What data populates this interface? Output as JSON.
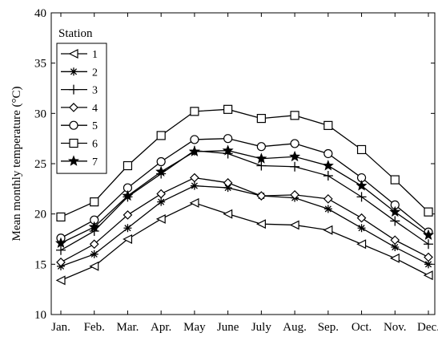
{
  "chart_data": {
    "type": "line",
    "title": "",
    "xlabel": "",
    "ylabel": "Mean monthly temperature (°C)",
    "categories": [
      "Jan.",
      "Feb.",
      "Mar.",
      "Apr.",
      "May",
      "June",
      "July",
      "Aug.",
      "Sep.",
      "Oct.",
      "Nov.",
      "Dec."
    ],
    "ylim": [
      10,
      40
    ],
    "yticks": [
      "10",
      "15",
      "20",
      "25",
      "30",
      "35",
      "40"
    ],
    "grid": false,
    "legend": {
      "title": "Station",
      "placement": "top-left"
    },
    "series": [
      {
        "name": "1",
        "marker": "triangle-left",
        "values": [
          13.4,
          14.8,
          17.5,
          19.5,
          21.1,
          20.0,
          19.0,
          18.9,
          18.4,
          17.0,
          15.6,
          13.9
        ]
      },
      {
        "name": "2",
        "marker": "asterisk",
        "values": [
          14.8,
          16.0,
          18.6,
          21.2,
          22.8,
          22.6,
          21.8,
          21.6,
          20.5,
          18.6,
          16.7,
          15.0
        ]
      },
      {
        "name": "3",
        "marker": "plus",
        "values": [
          16.4,
          18.3,
          21.7,
          24.0,
          26.3,
          26.0,
          24.8,
          24.7,
          23.8,
          21.7,
          19.3,
          17.0
        ]
      },
      {
        "name": "4",
        "marker": "diamond",
        "values": [
          15.2,
          17.0,
          19.9,
          22.0,
          23.6,
          23.1,
          21.8,
          21.9,
          21.5,
          19.6,
          17.4,
          15.7
        ]
      },
      {
        "name": "5",
        "marker": "circle",
        "values": [
          17.6,
          19.4,
          22.6,
          25.2,
          27.4,
          27.5,
          26.7,
          27.0,
          26.0,
          23.6,
          20.9,
          18.2
        ]
      },
      {
        "name": "6",
        "marker": "square",
        "values": [
          19.7,
          21.2,
          24.8,
          27.8,
          30.2,
          30.4,
          29.5,
          29.8,
          28.8,
          26.4,
          23.4,
          20.2
        ]
      },
      {
        "name": "7",
        "marker": "star",
        "values": [
          17.1,
          18.7,
          21.8,
          24.2,
          26.2,
          26.3,
          25.5,
          25.7,
          24.8,
          22.8,
          20.2,
          17.9
        ]
      }
    ]
  }
}
